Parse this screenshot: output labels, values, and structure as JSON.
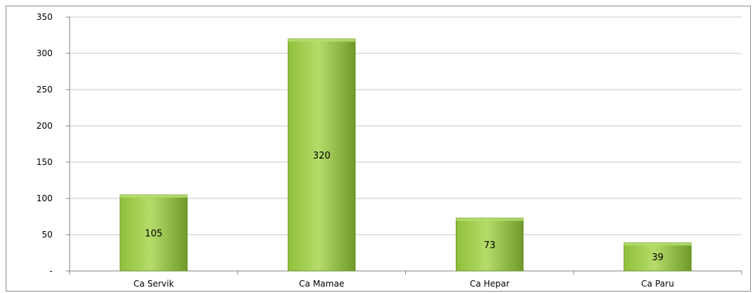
{
  "chart_data": {
    "type": "bar",
    "title": "",
    "xlabel": "",
    "ylabel": "",
    "categories": [
      "Ca Servik",
      "Ca Mamae",
      "Ca Hepar",
      "Ca Paru"
    ],
    "values": [
      105,
      320,
      73,
      39
    ],
    "data_labels": [
      "105",
      "320",
      "73",
      "39"
    ],
    "yticks": [
      {
        "value": 0,
        "label": "-"
      },
      {
        "value": 50,
        "label": "50"
      },
      {
        "value": 100,
        "label": "100"
      },
      {
        "value": 150,
        "label": "150"
      },
      {
        "value": 200,
        "label": "200"
      },
      {
        "value": 250,
        "label": "250"
      },
      {
        "value": 300,
        "label": "300"
      },
      {
        "value": 350,
        "label": "350"
      }
    ],
    "ylim": [
      0,
      350
    ],
    "grid": true,
    "legend": "none",
    "colors": {
      "bar_light": "#b5dc6a",
      "bar_mid": "#8fbf3a",
      "bar_dark": "#6e9a2a",
      "bar_edge": "#5f8a22",
      "gridline": "#c8c8c8",
      "axis": "#808080"
    }
  }
}
